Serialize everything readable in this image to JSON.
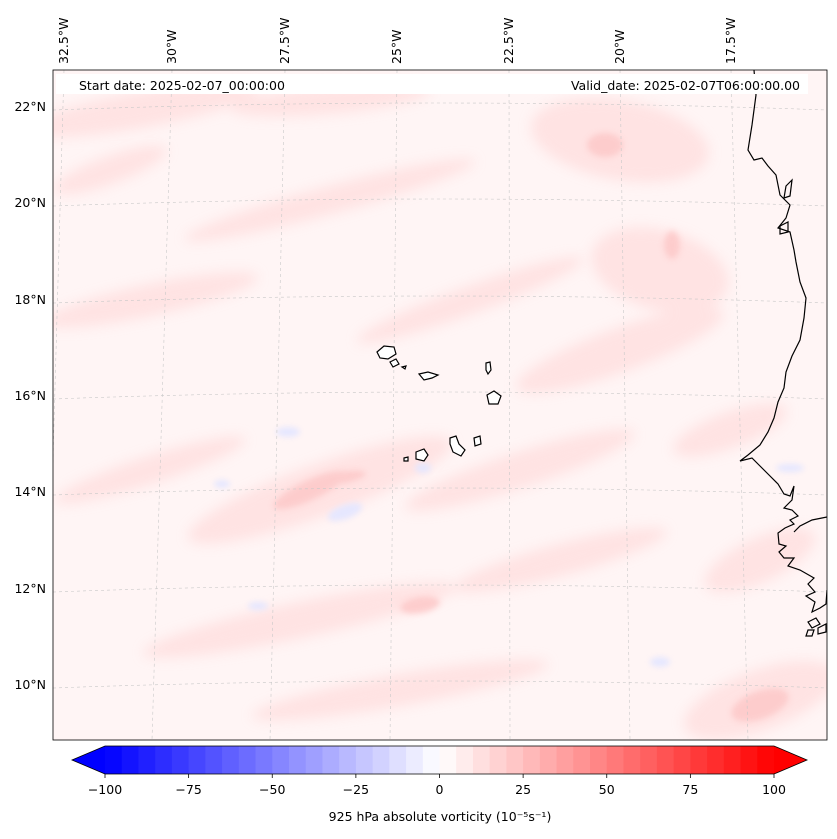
{
  "header": {
    "start_date": "Start date: 2025-02-07_00:00:00",
    "valid_date": "Valid_date: 2025-02-07T06:00:00.00"
  },
  "map": {
    "lon_labels": [
      "32.5°W",
      "30°W",
      "27.5°W",
      "25°W",
      "22.5°W",
      "20°W",
      "17.5°W"
    ],
    "lat_labels": [
      "22°N",
      "20°N",
      "18°N",
      "16°N",
      "14°N",
      "12°N",
      "10°N"
    ],
    "gridlines": true,
    "field_colors": {
      "background": "#fff5f5",
      "light_red": "#ffe1e1",
      "medium_red": "#fdcaca",
      "light_blue": "#e4e6ff",
      "coastline": "#000000"
    }
  },
  "colorbar": {
    "label": "925 hPa absolute vorticity (10⁻⁵s⁻¹)",
    "ticks": [
      "−100",
      "−75",
      "−50",
      "−25",
      "0",
      "25",
      "50",
      "75",
      "100"
    ],
    "min": -100,
    "max": 100,
    "colormap": "bwr",
    "extend": "both"
  }
}
